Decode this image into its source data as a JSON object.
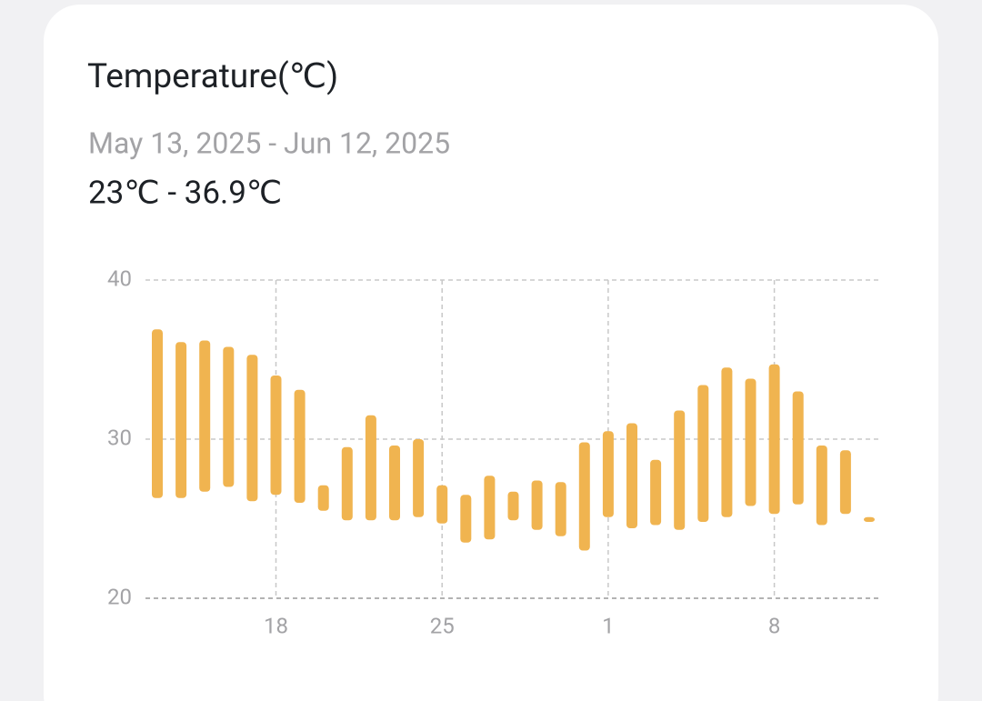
{
  "chart_data": {
    "type": "range_bar",
    "title": "Temperature(℃)",
    "subtitle": "May 13, 2025 - Jun 12, 2025",
    "range_text": "23℃ - 36.9℃",
    "categories": [
      null,
      null,
      null,
      null,
      null,
      "18",
      null,
      null,
      null,
      null,
      null,
      null,
      "25",
      null,
      null,
      null,
      null,
      null,
      null,
      "1",
      null,
      null,
      null,
      null,
      null,
      null,
      "8",
      null,
      null,
      null,
      null
    ],
    "lows": [
      26.3,
      26.3,
      26.7,
      27.0,
      26.1,
      26.5,
      26.0,
      25.5,
      24.9,
      24.9,
      24.9,
      25.1,
      24.7,
      23.5,
      23.7,
      24.9,
      24.3,
      23.9,
      23.0,
      25.1,
      24.4,
      24.6,
      24.3,
      24.8,
      25.1,
      25.8,
      25.3,
      25.9,
      24.6,
      25.3,
      24.8
    ],
    "highs": [
      36.9,
      36.1,
      36.2,
      35.8,
      35.3,
      34.0,
      33.1,
      27.1,
      29.5,
      31.5,
      29.6,
      30.0,
      27.1,
      26.5,
      27.7,
      26.7,
      27.4,
      27.3,
      29.8,
      30.5,
      31.0,
      28.7,
      31.8,
      33.4,
      34.5,
      33.8,
      34.7,
      33.0,
      29.6,
      29.3,
      25.1
    ],
    "color": "#f0b450",
    "ylim": [
      20,
      40
    ],
    "yticks": [
      20,
      30,
      40
    ],
    "grid": true
  }
}
